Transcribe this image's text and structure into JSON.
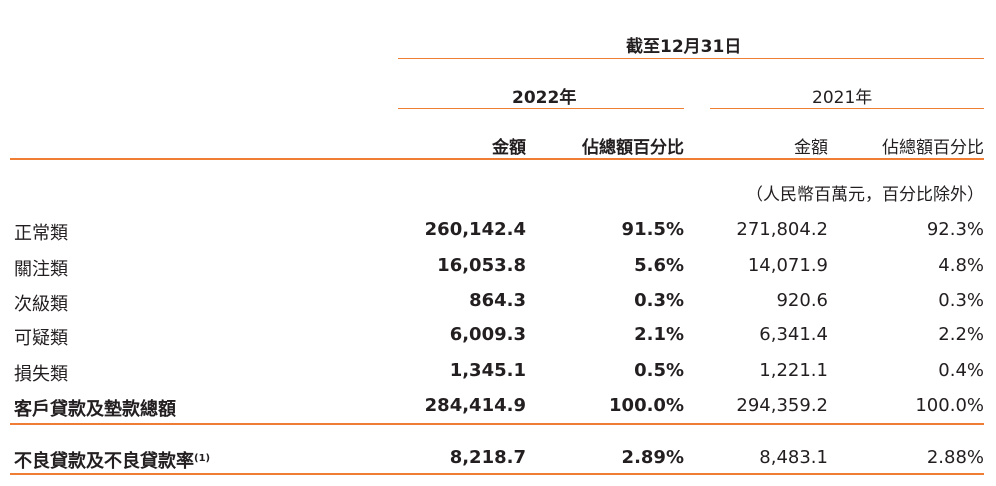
{
  "header": {
    "period": "截至12月31日",
    "year_current": "2022年",
    "year_prior": "2021年",
    "amount": "金額",
    "percent_of_total": "佔總額百分比",
    "unit_note": "（人民幣百萬元，百分比除外）"
  },
  "rows": [
    {
      "label": "正常類",
      "amount_2022": "260,142.4",
      "pct_2022": "91.5%",
      "amount_2021": "271,804.2",
      "pct_2021": "92.3%"
    },
    {
      "label": "關注類",
      "amount_2022": "16,053.8",
      "pct_2022": "5.6%",
      "amount_2021": "14,071.9",
      "pct_2021": "4.8%"
    },
    {
      "label": "次級類",
      "amount_2022": "864.3",
      "pct_2022": "0.3%",
      "amount_2021": "920.6",
      "pct_2021": "0.3%"
    },
    {
      "label": "可疑類",
      "amount_2022": "6,009.3",
      "pct_2022": "2.1%",
      "amount_2021": "6,341.4",
      "pct_2021": "2.2%"
    },
    {
      "label": "損失類",
      "amount_2022": "1,345.1",
      "pct_2022": "0.5%",
      "amount_2021": "1,221.1",
      "pct_2021": "0.4%"
    }
  ],
  "total": {
    "label": "客戶貸款及墊款總額",
    "amount_2022": "284,414.9",
    "pct_2022": "100.0%",
    "amount_2021": "294,359.2",
    "pct_2021": "100.0%"
  },
  "npl": {
    "label": "不良貸款及不良貸款率",
    "footnote": "(1)",
    "amount_2022": "8,218.7",
    "pct_2022": "2.89%",
    "amount_2021": "8,483.1",
    "pct_2021": "2.88%"
  },
  "colors": {
    "rule": "#ef7d33",
    "text": "#231f20"
  }
}
